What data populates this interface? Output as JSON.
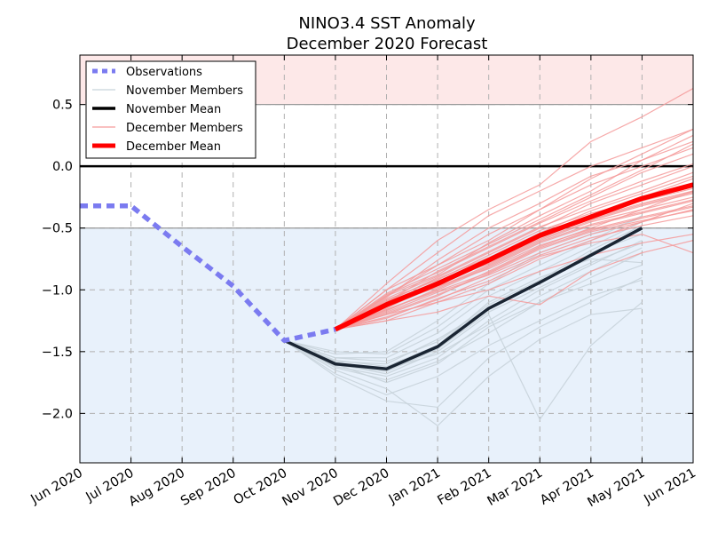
{
  "chart_data": {
    "type": "line",
    "title": "NINO3.4 SST Anomaly",
    "subtitle": "December 2020 Forecast",
    "x_ticks": [
      "Jun 2020",
      "Jul 2020",
      "Aug 2020",
      "Sep 2020",
      "Oct 2020",
      "Nov 2020",
      "Dec 2020",
      "Jan 2021",
      "Feb 2021",
      "Mar 2021",
      "Apr 2021",
      "May 2021",
      "Jun 2021"
    ],
    "y_ticks": [
      "−2.0",
      "−1.5",
      "−1.0",
      "−0.5",
      "0.0",
      "0.5"
    ],
    "y_tick_values": [
      -2.0,
      -1.5,
      -1.0,
      -0.5,
      0.0,
      0.5
    ],
    "xlim": [
      0,
      12
    ],
    "ylim": [
      -2.4,
      0.9
    ],
    "grid": true,
    "legend_position": "top-left",
    "shaded_regions": [
      {
        "name": "warm",
        "y_from": 0.5,
        "y_to": 0.9,
        "color": "#fde8e8"
      },
      {
        "name": "cold",
        "y_from": -2.4,
        "y_to": -0.5,
        "color": "#e8f1fb"
      }
    ],
    "reference_lines": [
      {
        "y": 0.0,
        "color": "#000000"
      },
      {
        "y": 0.5,
        "color": "#999999"
      },
      {
        "y": -0.5,
        "color": "#999999"
      }
    ],
    "colors": {
      "observations": "#7b7bf0",
      "november_members": "#c8d3da",
      "november_mean": "#1a2533",
      "december_members": "#f59a9a",
      "december_mean": "#ff0000"
    },
    "series": [
      {
        "name": "Observations",
        "x": [
          0,
          1,
          2,
          3,
          4,
          5
        ],
        "values": [
          -0.32,
          -0.32,
          -0.65,
          -0.97,
          -1.41,
          -1.32
        ]
      },
      {
        "name": "November Mean",
        "x": [
          4,
          5,
          6,
          7,
          8,
          9,
          10,
          11
        ],
        "values": [
          -1.41,
          -1.6,
          -1.64,
          -1.46,
          -1.15,
          -0.94,
          -0.72,
          -0.5
        ]
      },
      {
        "name": "December Mean",
        "x": [
          5,
          6,
          7,
          8,
          9,
          10,
          11,
          12
        ],
        "values": [
          -1.32,
          -1.12,
          -0.95,
          -0.76,
          -0.56,
          -0.41,
          -0.26,
          -0.15
        ]
      }
    ],
    "november_members": [
      [
        -1.41,
        -1.6,
        -1.75,
        -1.6,
        -1.3,
        -1.1,
        -0.9,
        -0.7
      ],
      [
        -1.41,
        -1.55,
        -1.55,
        -1.35,
        -1.05,
        -0.85,
        -0.65,
        -0.45
      ],
      [
        -1.41,
        -1.7,
        -1.9,
        -1.95,
        -1.55,
        -1.3,
        -1.1,
        -0.9
      ],
      [
        -1.41,
        -1.58,
        -1.6,
        -1.4,
        -1.15,
        -0.95,
        -0.7,
        -0.55
      ],
      [
        -1.41,
        -1.62,
        -1.7,
        -1.55,
        -1.25,
        -1.0,
        -0.8,
        -0.6
      ],
      [
        -1.41,
        -1.5,
        -1.52,
        -1.3,
        -1.0,
        -0.8,
        -0.6,
        -0.4
      ],
      [
        -1.41,
        -1.65,
        -1.8,
        -2.1,
        -1.7,
        -1.4,
        -1.2,
        -1.15
      ],
      [
        -1.41,
        -1.6,
        -1.68,
        -1.5,
        -1.2,
        -2.05,
        -1.45,
        -1.1
      ],
      [
        -1.41,
        -1.57,
        -1.62,
        -1.45,
        -1.1,
        -0.9,
        -0.75,
        -0.78
      ],
      [
        -1.41,
        -1.63,
        -1.73,
        -1.58,
        -1.35,
        -1.1,
        -0.95,
        -0.8
      ],
      [
        -1.41,
        -1.55,
        -1.58,
        -1.42,
        -1.12,
        -0.92,
        -0.68,
        -0.48
      ],
      [
        -1.41,
        -1.68,
        -1.85,
        -1.7,
        -1.45,
        -1.25,
        -1.05,
        -0.92
      ],
      [
        -1.41,
        -1.52,
        -1.5,
        -1.25,
        -0.95,
        -0.7,
        -0.55,
        -0.42
      ],
      [
        -1.41,
        -1.61,
        -1.66,
        -1.48,
        -1.18,
        -0.98,
        -0.78,
        -0.62
      ],
      [
        -1.41,
        -1.59,
        -1.64,
        -1.52,
        -1.28,
        -1.05,
        -0.85,
        -0.66
      ]
    ],
    "december_members": [
      [
        -1.32,
        -1.0,
        -0.7,
        -0.4,
        -0.2,
        0.0,
        0.15,
        0.3
      ],
      [
        -1.32,
        -1.05,
        -0.8,
        -0.55,
        -0.35,
        -0.15,
        0.0,
        0.15
      ],
      [
        -1.32,
        -1.1,
        -0.9,
        -0.7,
        -0.5,
        -0.3,
        -0.15,
        0.0
      ],
      [
        -1.32,
        -1.15,
        -0.95,
        -0.75,
        -0.55,
        -0.4,
        -0.25,
        -0.1
      ],
      [
        -1.32,
        -1.2,
        -1.05,
        -0.85,
        -0.65,
        -0.5,
        -0.35,
        -0.2
      ],
      [
        -1.32,
        -1.25,
        -1.1,
        -0.95,
        -0.75,
        -0.6,
        -0.45,
        -0.3
      ],
      [
        -1.32,
        -1.0,
        -0.8,
        -0.6,
        -0.35,
        -0.1,
        0.1,
        0.3
      ],
      [
        -1.32,
        -0.95,
        -0.6,
        -0.35,
        -0.15,
        0.2,
        0.4,
        0.63
      ],
      [
        -1.32,
        -1.08,
        -0.92,
        -0.72,
        -0.52,
        -0.38,
        -0.28,
        -0.18
      ],
      [
        -1.32,
        -1.12,
        -0.98,
        -0.8,
        -0.6,
        -0.45,
        -0.35,
        -0.25
      ],
      [
        -1.32,
        -1.18,
        -1.02,
        -0.88,
        -0.7,
        -0.55,
        -0.45,
        -0.35
      ],
      [
        -1.32,
        -1.22,
        -1.08,
        -0.9,
        -0.72,
        -0.58,
        -0.48,
        -0.4
      ],
      [
        -1.32,
        -1.1,
        -0.85,
        -0.65,
        -0.45,
        -0.25,
        -0.05,
        0.1
      ],
      [
        -1.32,
        -1.05,
        -0.88,
        -0.62,
        -0.4,
        -0.2,
        0.05,
        0.25
      ],
      [
        -1.32,
        -1.14,
        -0.96,
        -0.78,
        -0.58,
        -0.42,
        -0.3,
        -0.2
      ],
      [
        -1.32,
        -1.16,
        -1.0,
        -0.82,
        -0.62,
        -0.48,
        -0.38,
        -0.28
      ],
      [
        -1.32,
        -1.2,
        -1.1,
        -1.0,
        -0.85,
        -0.72,
        -0.62,
        -0.55
      ],
      [
        -1.32,
        -1.25,
        -1.18,
        -1.05,
        -1.12,
        -0.85,
        -0.7,
        -0.6
      ],
      [
        -1.32,
        -1.09,
        -0.91,
        -0.74,
        -0.54,
        -0.36,
        -0.22,
        -0.08
      ],
      [
        -1.32,
        -1.03,
        -0.83,
        -0.63,
        -0.43,
        -0.23,
        -0.03,
        0.18
      ],
      [
        -1.32,
        -1.13,
        -0.93,
        -0.79,
        -0.59,
        -0.44,
        -0.32,
        -0.22
      ],
      [
        -1.32,
        -1.17,
        -0.99,
        -0.81,
        -0.61,
        -0.47,
        -0.37,
        -0.27
      ],
      [
        -1.32,
        -1.07,
        -0.89,
        -0.69,
        -0.49,
        -0.34,
        -0.2,
        -0.05
      ],
      [
        -1.32,
        -1.11,
        -0.94,
        -0.77,
        -0.57,
        -0.43,
        -0.31,
        -0.21
      ],
      [
        -1.32,
        -1.19,
        -1.04,
        -0.87,
        -0.67,
        -0.53,
        -0.44,
        -0.36
      ],
      [
        -1.32,
        -1.23,
        -1.07,
        -0.93,
        -0.73,
        -0.62,
        -0.55,
        -0.7
      ],
      [
        -1.32,
        -1.06,
        -0.76,
        -0.5,
        -0.3,
        -0.08,
        0.05,
        0.2
      ],
      [
        -1.32,
        -1.14,
        -0.97,
        -0.83,
        -0.64,
        -0.51,
        -0.41,
        -0.32
      ],
      [
        -1.32,
        -1.04,
        -0.86,
        -0.66,
        -0.46,
        -0.28,
        -0.12,
        0.02
      ],
      [
        -1.32,
        -1.16,
        -1.01,
        -0.86,
        -0.66,
        -0.52,
        -0.42,
        -0.33
      ]
    ]
  },
  "legend": [
    {
      "label": "Observations",
      "key": "observations"
    },
    {
      "label": "November Members",
      "key": "november_members"
    },
    {
      "label": "November Mean",
      "key": "november_mean"
    },
    {
      "label": "December Members",
      "key": "december_members"
    },
    {
      "label": "December Mean",
      "key": "december_mean"
    }
  ]
}
